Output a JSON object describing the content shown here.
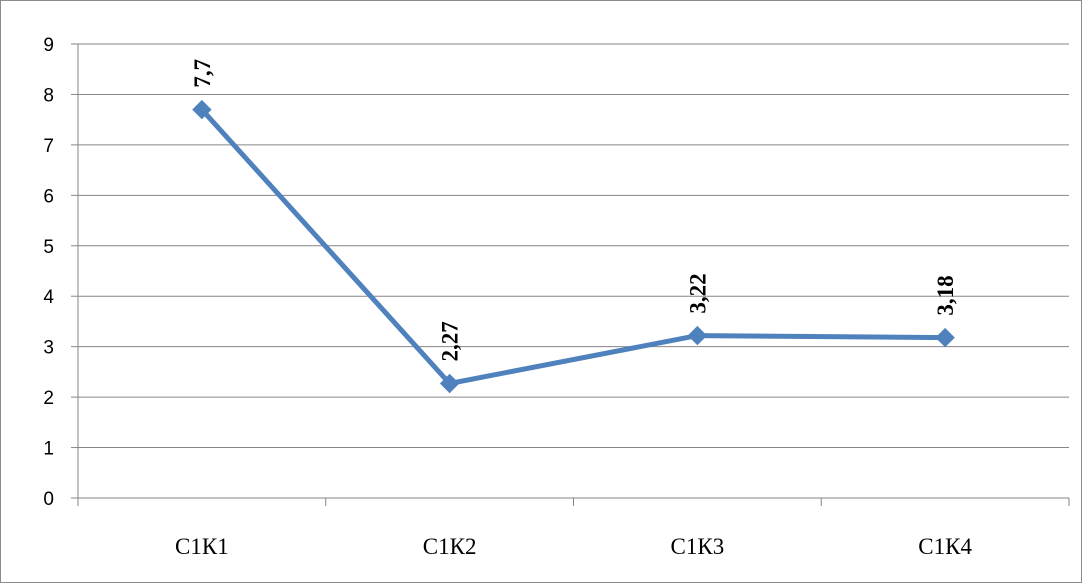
{
  "chart_data": {
    "type": "line",
    "categories": [
      "С1К1",
      "С1К2",
      "С1К3",
      "С1К4"
    ],
    "series": [
      {
        "values": [
          7.7,
          2.27,
          3.22,
          3.18
        ],
        "labels": [
          "7,7",
          "2,27",
          "3,22",
          "3,18"
        ],
        "color": "#4f81bd"
      }
    ],
    "ylim": [
      0,
      9
    ],
    "yticks": [
      "0",
      "1",
      "2",
      "3",
      "4",
      "5",
      "6",
      "7",
      "8",
      "9"
    ],
    "grid": true,
    "legend": "none",
    "gridline_color": "#868686",
    "axis_color": "#868686"
  }
}
